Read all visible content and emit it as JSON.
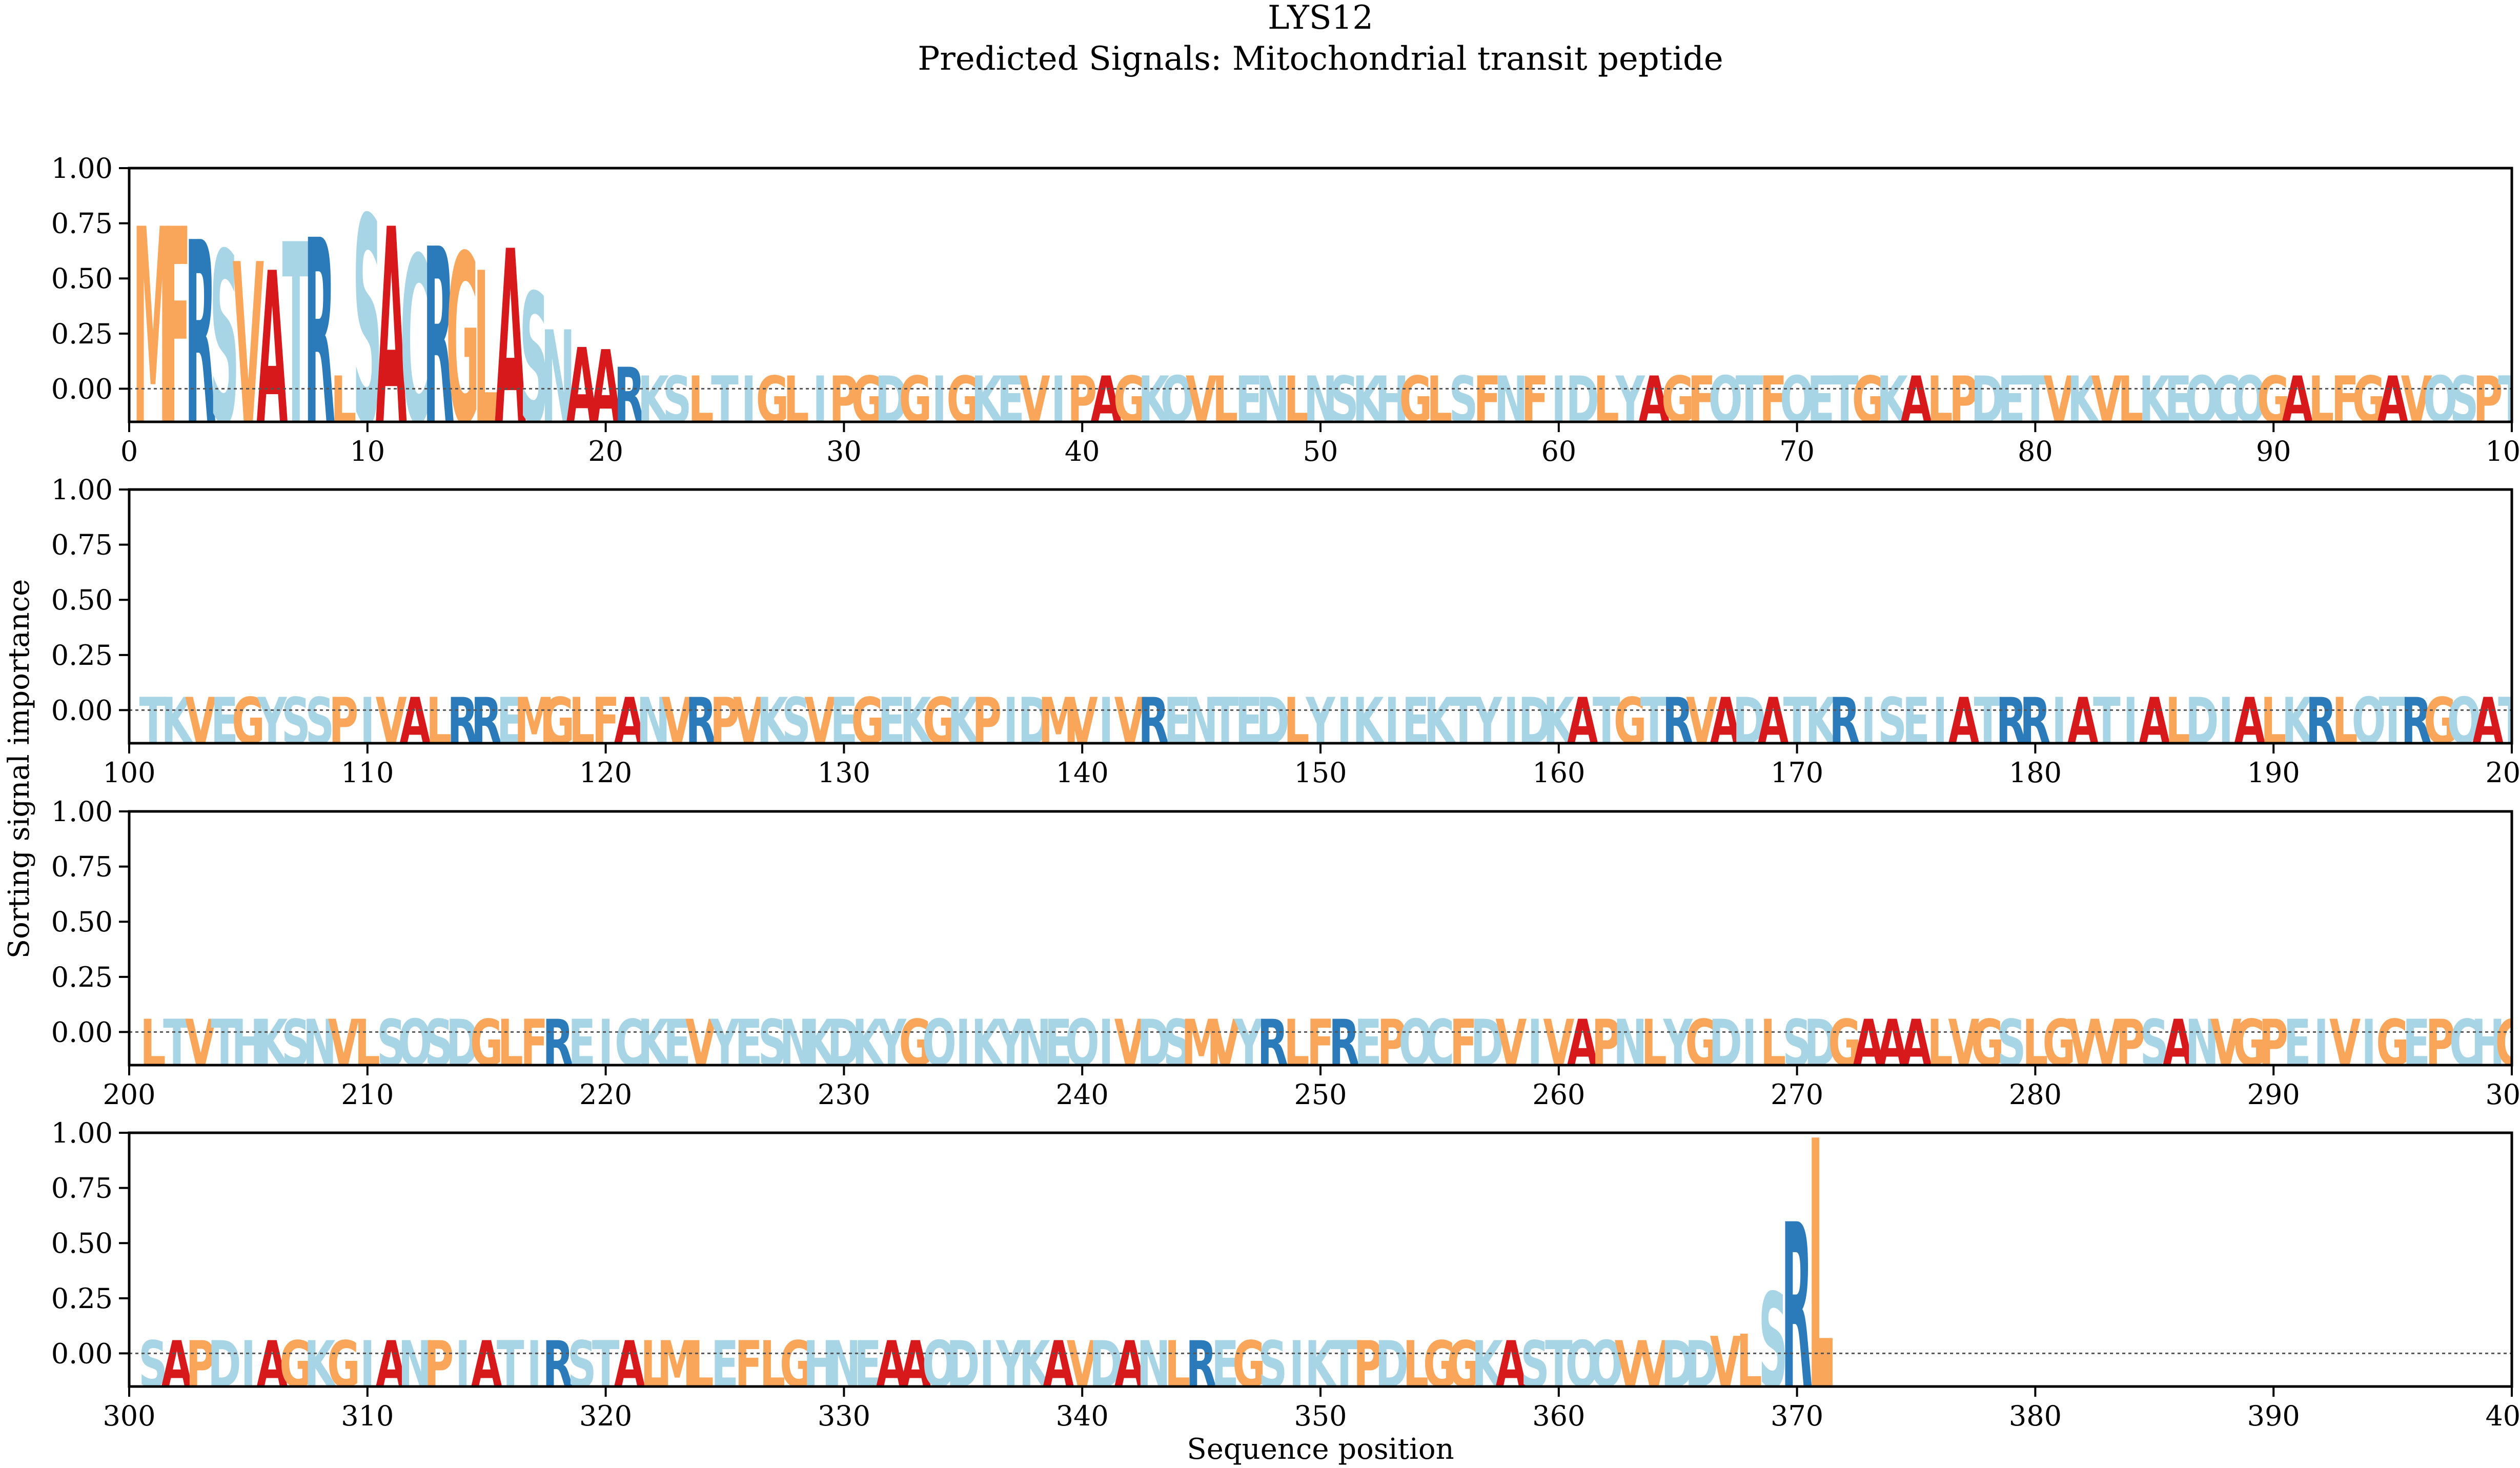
{
  "chart_data": {
    "type": "sequence-logo",
    "title": "LYS12",
    "subtitle": "Predicted Signals: Mitochondrial transit peptide",
    "xlabel": "Sequence position",
    "ylabel": "Sorting signal importance",
    "ylim": [
      -0.15,
      1.0
    ],
    "yticks": [
      "1.00",
      "0.75",
      "0.50",
      "0.25",
      "0.00"
    ],
    "baseline": 0.0,
    "panels": [
      {
        "xlim": [
          100,
          0
        ],
        "xticks": [
          0,
          10,
          20,
          30,
          40,
          50,
          60,
          70,
          80,
          90,
          100
        ]
      },
      {
        "xlim": [
          100,
          200
        ],
        "xticks": [
          100,
          110,
          120,
          130,
          140,
          150,
          160,
          170,
          180,
          190,
          200
        ]
      },
      {
        "xlim": [
          200,
          300
        ],
        "xticks": [
          200,
          210,
          220,
          230,
          240,
          250,
          260,
          270,
          280,
          290,
          300
        ]
      },
      {
        "xlim": [
          300,
          400
        ],
        "xticks": [
          300,
          310,
          320,
          330,
          340,
          350,
          360,
          370,
          380,
          390,
          400
        ]
      }
    ],
    "colors": {
      "hydrophobic": "#f9a65a",
      "polar": "#a8d5e5",
      "positive": "#2b7bba",
      "alanine": "#d7191c"
    },
    "residue_classes": {
      "A": "alanine",
      "R": "positive",
      "K": "polar",
      "H": "polar",
      "L": "hydrophobic",
      "I": "polar",
      "V": "hydrophobic",
      "F": "hydrophobic",
      "M": "hydrophobic",
      "W": "hydrophobic",
      "G": "hydrophobic",
      "P": "hydrophobic",
      "C": "polar",
      "Y": "polar",
      "S": "polar",
      "T": "polar",
      "N": "polar",
      "Q": "polar",
      "D": "polar",
      "E": "polar"
    },
    "sequence": "MFRSVATRLSACRGLASNAARKSLTIGLIPGDGIGKEVIPAGKQVLENLNSKHGLSFNFIDLYAGFQTFQETGKALPDETVKVLKEQCQGALFGAVQSPTTKVEGYSSPIVALRREMGLFANVRPVKSVEGEKGKPIDMVIVRENTEDLYIKIEKTYIDKATGTRVADATKRISEIATRRIATIALDIALKRLQTRGQATLTVTHKSNVLSQSDGLFREICKEVYESNKDKYGQIKYNEQIVDSMVYRLFREPQCFDVIVAPNLYGDILSDGAAALVGSLGVVPSANVGPEIVIGEPCHGSAPDIAGKGIANPIATIRSTALMLEFLGHNEAAQDIYKAVDANLREGSIKTPDLGGKASTQQVVDDVLSRL",
    "importance": [
      {
        "pos": 1,
        "aa": "M",
        "value": 0.74
      },
      {
        "pos": 2,
        "aa": "F",
        "value": 0.74
      },
      {
        "pos": 3,
        "aa": "R",
        "value": 0.68
      },
      {
        "pos": 4,
        "aa": "S",
        "value": 0.63
      },
      {
        "pos": 5,
        "aa": "V",
        "value": 0.58
      },
      {
        "pos": 6,
        "aa": "A",
        "value": 0.54
      },
      {
        "pos": 7,
        "aa": "T",
        "value": 0.67
      },
      {
        "pos": 8,
        "aa": "R",
        "value": 0.69
      },
      {
        "pos": 9,
        "aa": "L",
        "value": 0.0
      },
      {
        "pos": 10,
        "aa": "S",
        "value": 0.79
      },
      {
        "pos": 11,
        "aa": "A",
        "value": 0.74
      },
      {
        "pos": 12,
        "aa": "C",
        "value": 0.61
      },
      {
        "pos": 13,
        "aa": "R",
        "value": 0.65
      },
      {
        "pos": 14,
        "aa": "G",
        "value": 0.62
      },
      {
        "pos": 15,
        "aa": "L",
        "value": 0.54
      },
      {
        "pos": 16,
        "aa": "A",
        "value": 0.64
      },
      {
        "pos": 17,
        "aa": "S",
        "value": 0.44
      },
      {
        "pos": 18,
        "aa": "N",
        "value": 0.27
      },
      {
        "pos": 19,
        "aa": "A",
        "value": 0.19
      },
      {
        "pos": 20,
        "aa": "A",
        "value": 0.18
      },
      {
        "pos": 21,
        "aa": "R",
        "value": 0.1
      },
      {
        "pos": 367,
        "aa": "V",
        "value": 0.08
      },
      {
        "pos": 368,
        "aa": "L",
        "value": 0.09
      },
      {
        "pos": 369,
        "aa": "S",
        "value": 0.28
      },
      {
        "pos": 370,
        "aa": "R",
        "value": 0.6
      },
      {
        "pos": 371,
        "aa": "L",
        "value": 0.98
      }
    ]
  }
}
